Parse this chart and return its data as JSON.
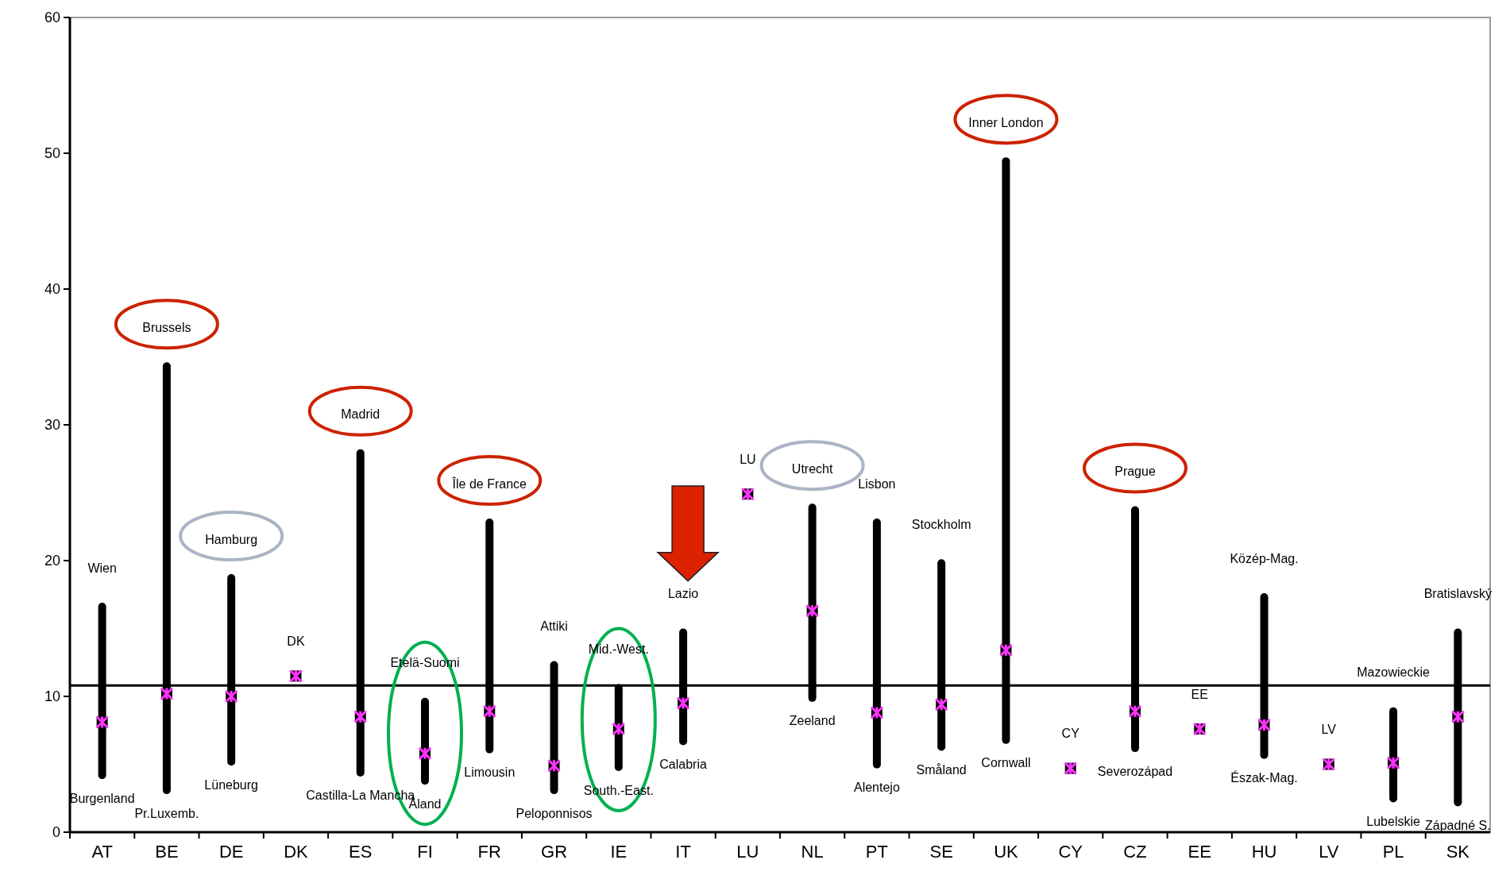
{
  "chart_data": {
    "type": "bar",
    "categories": [
      "AT",
      "BE",
      "DE",
      "DK",
      "ES",
      "FI",
      "FR",
      "GR",
      "IE",
      "IT",
      "LU",
      "NL",
      "PT",
      "SE",
      "UK",
      "CY",
      "CZ",
      "EE",
      "HU",
      "LV",
      "PL",
      "SK"
    ],
    "series": [
      {
        "color": "#000000",
        "base": [
          3.9,
          2.8,
          4.9,
          null,
          4.1,
          3.5,
          5.8,
          2.8,
          4.5,
          6.4,
          null,
          9.6,
          4.7,
          6.0,
          6.5,
          null,
          5.9,
          null,
          5.4,
          null,
          2.2,
          1.9
        ],
        "values": [
          13.0,
          31.8,
          14.1,
          null,
          24.1,
          6.4,
          17.3,
          9.8,
          6.4,
          8.6,
          null,
          14.6,
          18.4,
          14.1,
          43.2,
          null,
          18.1,
          null,
          12.2,
          null,
          7.0,
          13.1
        ]
      },
      {
        "type": "scatter",
        "color": "#ff33ff",
        "marker": "cross",
        "x": [
          "AT",
          "BE",
          "DE",
          "DK",
          "ES",
          "FI",
          "FR",
          "GR",
          "IE",
          "IT",
          "LU",
          "NL",
          "PT",
          "SE",
          "UK",
          "CY",
          "CZ",
          "EE",
          "HU",
          "LV",
          "PL",
          "SK"
        ],
        "values": [
          8.1,
          10.2,
          10.0,
          11.5,
          8.5,
          5.8,
          8.9,
          4.9,
          7.6,
          9.5,
          24.9,
          16.3,
          8.8,
          9.4,
          13.4,
          4.7,
          8.9,
          7.6,
          7.9,
          5.0,
          5.1,
          8.5
        ]
      }
    ],
    "ylim": [
      0,
      60
    ],
    "yticks": [
      0,
      10,
      20,
      30,
      40,
      50,
      60
    ],
    "grid": false,
    "ref_lines": [
      {
        "axis": "y",
        "value": 10.8,
        "color": "#000000"
      }
    ],
    "annotations": [
      {
        "text": "Wien",
        "x": "AT",
        "y": 16.9
      },
      {
        "text": "Burgenland",
        "x": "AT",
        "y": 3.9
      },
      {
        "text": "Brussels",
        "x": "BE",
        "y": 34.6
      },
      {
        "text": "Pr.Luxemb.",
        "x": "BE",
        "y": 2.8
      },
      {
        "text": "Hamburg",
        "x": "DE",
        "y": 19.0
      },
      {
        "text": "Lüneburg",
        "x": "DE",
        "y": 4.9
      },
      {
        "text": "DK",
        "x": "DK",
        "y": 11.5
      },
      {
        "text": "Madrid",
        "x": "ES",
        "y": 28.2
      },
      {
        "text": "Castilla-La Mancha",
        "x": "ES",
        "y": 4.1
      },
      {
        "text": "Etelä-Suomi",
        "x": "FI",
        "y": 9.9
      },
      {
        "text": "Åland",
        "x": "FI",
        "y": 3.5
      },
      {
        "text": "Île de France",
        "x": "FR",
        "y": 23.1
      },
      {
        "text": "Limousin",
        "x": "FR",
        "y": 5.8
      },
      {
        "text": "Attiki",
        "x": "GR",
        "y": 12.6
      },
      {
        "text": "Peloponnisos",
        "x": "GR",
        "y": 2.8
      },
      {
        "text": "Mid.-West.",
        "x": "IE",
        "y": 10.9
      },
      {
        "text": "South.-East.",
        "x": "IE",
        "y": 4.5
      },
      {
        "text": "Lazio",
        "x": "IT",
        "y": 15.0
      },
      {
        "text": "Calabria",
        "x": "IT",
        "y": 6.4
      },
      {
        "text": "LU",
        "x": "LU",
        "y": 24.9
      },
      {
        "text": "Utrecht",
        "x": "NL",
        "y": 24.2
      },
      {
        "text": "Zeeland",
        "x": "NL",
        "y": 9.6
      },
      {
        "text": "Lisbon",
        "x": "PT",
        "y": 23.1
      },
      {
        "text": "Alentejo",
        "x": "PT",
        "y": 4.7
      },
      {
        "text": "Stockholm",
        "x": "SE",
        "y": 20.1
      },
      {
        "text": "Småland",
        "x": "SE",
        "y": 6.0
      },
      {
        "text": "Inner London",
        "x": "UK",
        "y": 49.7
      },
      {
        "text": "Cornwall",
        "x": "UK",
        "y": 6.5
      },
      {
        "text": "CY",
        "x": "CY",
        "y": 4.7
      },
      {
        "text": "Prague",
        "x": "CZ",
        "y": 24.0
      },
      {
        "text": "Severozápad",
        "x": "CZ",
        "y": 5.9
      },
      {
        "text": "EE",
        "x": "EE",
        "y": 7.6
      },
      {
        "text": "Közép-Mag.",
        "x": "HU",
        "y": 17.6
      },
      {
        "text": "Észak-Mag.",
        "x": "HU",
        "y": 5.4
      },
      {
        "text": "LV",
        "x": "LV",
        "y": 5.0
      },
      {
        "text": "Mazowieckie",
        "x": "PL",
        "y": 9.2
      },
      {
        "text": "Lubelskie",
        "x": "PL",
        "y": 2.2
      },
      {
        "text": "Bratislavský",
        "x": "SK",
        "y": 15.0
      },
      {
        "text": "Západné S.",
        "x": "SK",
        "y": 1.9
      }
    ]
  }
}
